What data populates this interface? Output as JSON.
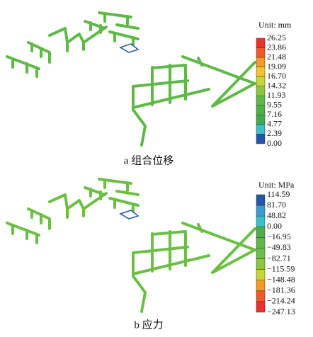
{
  "panels": [
    {
      "unit": "Unit: mm",
      "labels": [
        "26.25",
        "23.86",
        "21.48",
        "19.09",
        "16.70",
        "14.32",
        "11.93",
        "9.55",
        "7.16",
        "4.77",
        "2.39",
        "0.00"
      ],
      "colors": [
        "#e8322a",
        "#ef5a2a",
        "#f39a2b",
        "#f2c231",
        "#c8d53a",
        "#8cc640",
        "#5fb946",
        "#4fb04a",
        "#44a84e",
        "#3ec0c8",
        "#2456a8"
      ],
      "caption": "a 组合位移"
    },
    {
      "unit": "Unit: MPa",
      "labels": [
        "114.59",
        "81.70",
        "48.82",
        "0.00",
        "−16.95",
        "−49.83",
        "−82.71",
        "−115.59",
        "−148.48",
        "−181.36",
        "−214.24",
        "−247.13"
      ],
      "colors": [
        "#2456a8",
        "#3d9ad4",
        "#3ec0c8",
        "#4fb04a",
        "#5fb946",
        "#6cbf44",
        "#8cc640",
        "#c8d53a",
        "#f39a2b",
        "#ef5a2a",
        "#e8322a"
      ],
      "caption": "b 应力"
    }
  ]
}
